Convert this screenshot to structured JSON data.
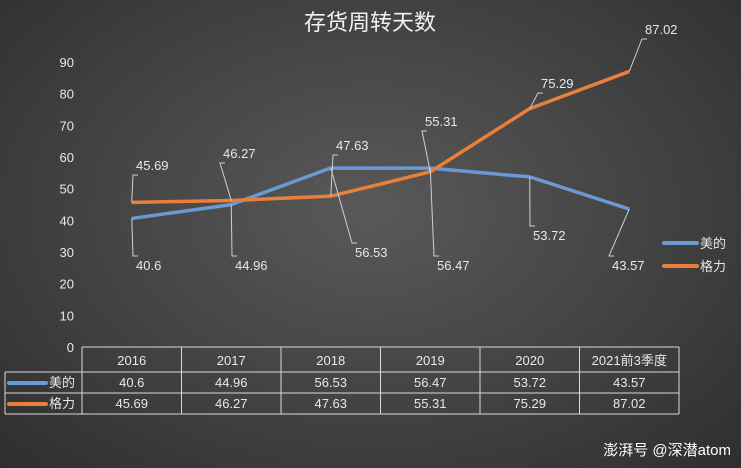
{
  "chart_data": {
    "type": "line",
    "title": "存货周转天数",
    "categories": [
      "2016",
      "2017",
      "2018",
      "2019",
      "2020",
      "2021前3季度"
    ],
    "series": [
      {
        "name": "美的",
        "color": "#6a99d3",
        "values": [
          40.6,
          44.96,
          56.53,
          56.47,
          53.72,
          43.57
        ]
      },
      {
        "name": "格力",
        "color": "#e8803a",
        "values": [
          45.69,
          46.27,
          47.63,
          55.31,
          75.29,
          87.02
        ]
      }
    ],
    "ylim": [
      0,
      90
    ],
    "yticks": [
      0,
      10,
      20,
      30,
      40,
      50,
      60,
      70,
      80,
      90
    ],
    "legend": "right",
    "data_table": true
  },
  "watermark": "澎湃号 @深潜atom"
}
